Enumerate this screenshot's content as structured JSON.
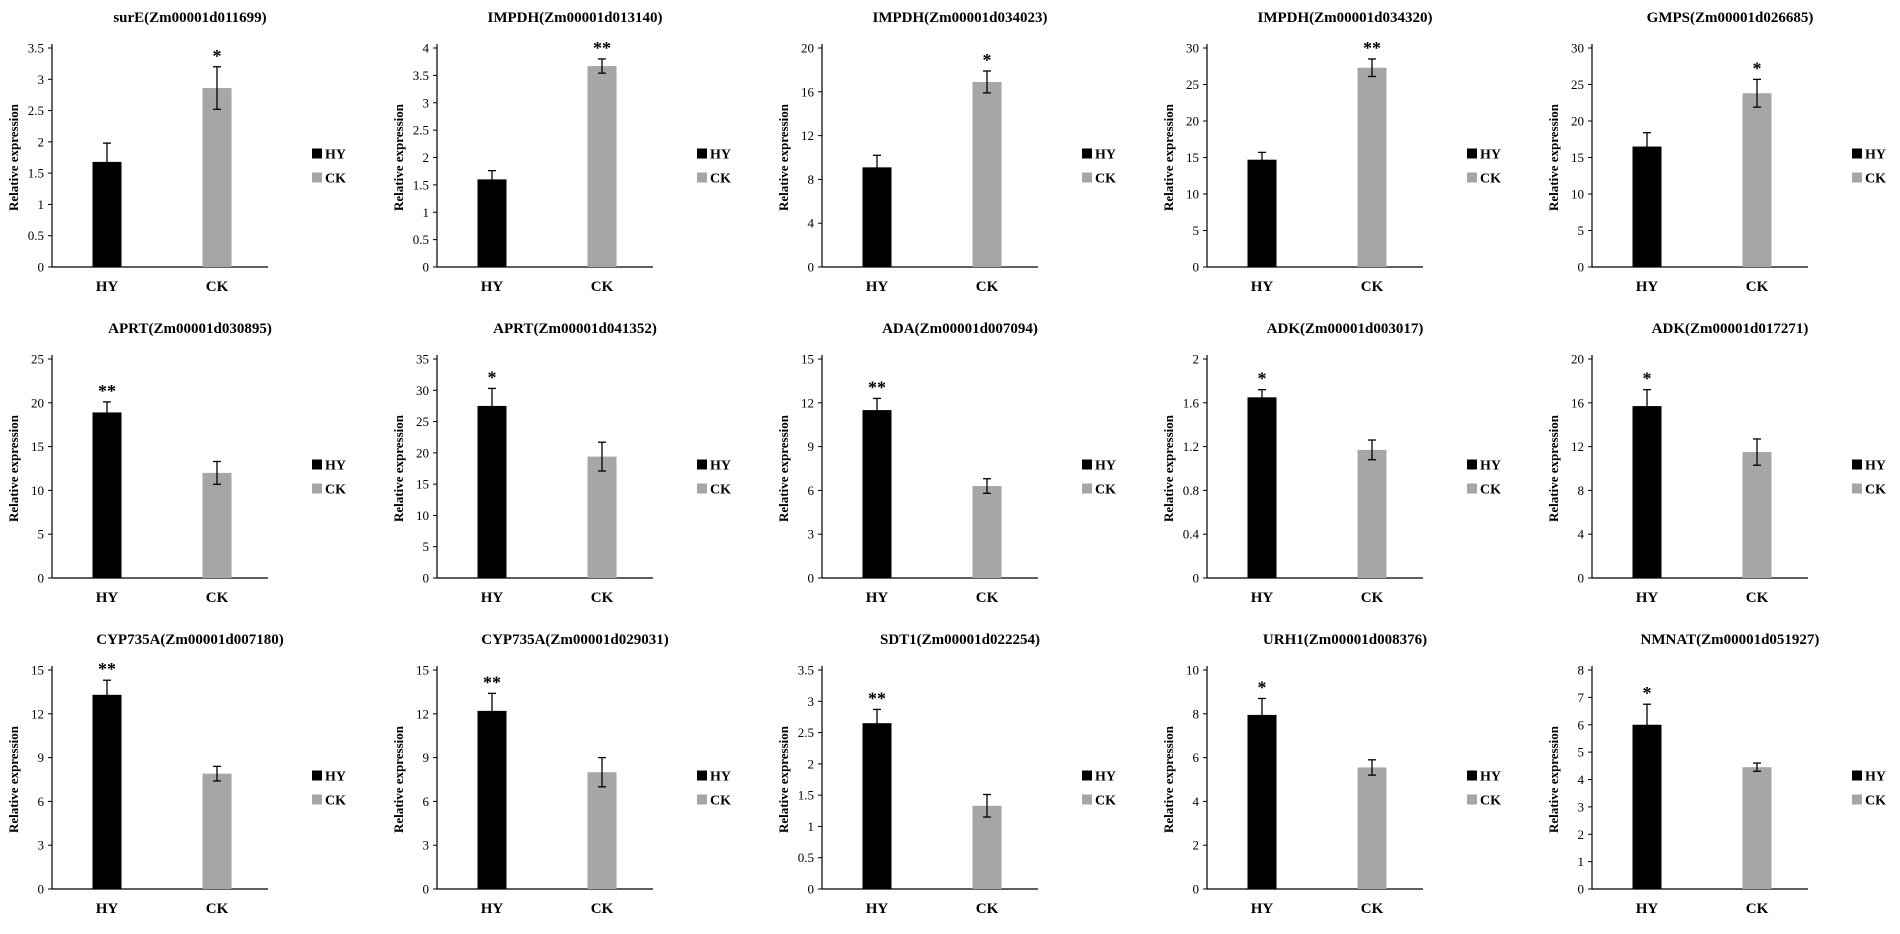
{
  "colors": {
    "HY": "#000000",
    "CK": "#a6a6a6",
    "axis": "#000000"
  },
  "chart_data": [
    {
      "type": "bar",
      "title": "surE(Zm00001d011699)",
      "ylabel": "Relative expression",
      "categories": [
        "HY",
        "CK"
      ],
      "values": [
        1.68,
        2.86
      ],
      "errors": [
        0.3,
        0.34
      ],
      "significance": [
        "",
        "*"
      ],
      "ylim": [
        0,
        3.5
      ],
      "ticks": [
        "0",
        "0.5",
        "1",
        "1.5",
        "2",
        "2.5",
        "3",
        "3.5"
      ],
      "legend": [
        "HY",
        "CK"
      ]
    },
    {
      "type": "bar",
      "title": "IMPDH(Zm00001d013140)",
      "ylabel": "Relative expression",
      "categories": [
        "HY",
        "CK"
      ],
      "values": [
        1.6,
        3.67
      ],
      "errors": [
        0.16,
        0.13
      ],
      "significance": [
        "",
        "**"
      ],
      "ylim": [
        0,
        4
      ],
      "ticks": [
        "0",
        "0.5",
        "1",
        "1.5",
        "2",
        "2.5",
        "3",
        "3.5",
        "4"
      ],
      "legend": [
        "HY",
        "CK"
      ]
    },
    {
      "type": "bar",
      "title": "IMPDH(Zm00001d034023)",
      "ylabel": "Relative expression",
      "categories": [
        "HY",
        "CK"
      ],
      "values": [
        9.1,
        16.9
      ],
      "errors": [
        1.1,
        1.0
      ],
      "significance": [
        "",
        "*"
      ],
      "ylim": [
        0,
        20
      ],
      "ticks": [
        "0",
        "4",
        "8",
        "12",
        "16",
        "20"
      ],
      "legend": [
        "HY",
        "CK"
      ]
    },
    {
      "type": "bar",
      "title": "IMPDH(Zm00001d034320)",
      "ylabel": "Relative expression",
      "categories": [
        "HY",
        "CK"
      ],
      "values": [
        14.7,
        27.3
      ],
      "errors": [
        1.0,
        1.2
      ],
      "significance": [
        "",
        "**"
      ],
      "ylim": [
        0,
        30
      ],
      "ticks": [
        "0",
        "5",
        "10",
        "15",
        "20",
        "25",
        "30"
      ],
      "legend": [
        "HY",
        "CK"
      ]
    },
    {
      "type": "bar",
      "title": "GMPS(Zm00001d026685)",
      "ylabel": "Relative expression",
      "categories": [
        "HY",
        "CK"
      ],
      "values": [
        16.5,
        23.8
      ],
      "errors": [
        1.9,
        1.9
      ],
      "significance": [
        "",
        "*"
      ],
      "ylim": [
        0,
        30
      ],
      "ticks": [
        "0",
        "5",
        "10",
        "15",
        "20",
        "25",
        "30"
      ],
      "legend": [
        "HY",
        "CK"
      ]
    },
    {
      "type": "bar",
      "title": "APRT(Zm00001d030895)",
      "ylabel": "Relative expression",
      "categories": [
        "HY",
        "CK"
      ],
      "values": [
        18.9,
        12.0
      ],
      "errors": [
        1.2,
        1.3
      ],
      "significance": [
        "**",
        ""
      ],
      "ylim": [
        0,
        25
      ],
      "ticks": [
        "0",
        "5",
        "10",
        "15",
        "20",
        "25"
      ],
      "legend": [
        "HY",
        "CK"
      ]
    },
    {
      "type": "bar",
      "title": "APRT(Zm00001d041352)",
      "ylabel": "Relative expression",
      "categories": [
        "HY",
        "CK"
      ],
      "values": [
        27.5,
        19.4
      ],
      "errors": [
        2.8,
        2.3
      ],
      "significance": [
        "*",
        ""
      ],
      "ylim": [
        0,
        35
      ],
      "ticks": [
        "0",
        "5",
        "10",
        "15",
        "20",
        "25",
        "30",
        "35"
      ],
      "legend": [
        "HY",
        "CK"
      ]
    },
    {
      "type": "bar",
      "title": "ADA(Zm00001d007094)",
      "ylabel": "Relative expression",
      "categories": [
        "HY",
        "CK"
      ],
      "values": [
        11.5,
        6.3
      ],
      "errors": [
        0.8,
        0.5
      ],
      "significance": [
        "**",
        ""
      ],
      "ylim": [
        0,
        15
      ],
      "ticks": [
        "0",
        "3",
        "6",
        "9",
        "12",
        "15"
      ],
      "legend": [
        "HY",
        "CK"
      ]
    },
    {
      "type": "bar",
      "title": "ADK(Zm00001d003017)",
      "ylabel": "Relative expression",
      "categories": [
        "HY",
        "CK"
      ],
      "values": [
        1.65,
        1.17
      ],
      "errors": [
        0.07,
        0.09
      ],
      "significance": [
        "*",
        ""
      ],
      "ylim": [
        0,
        2
      ],
      "ticks": [
        "0",
        "0.4",
        "0.8",
        "1.2",
        "1.6",
        "2"
      ],
      "legend": [
        "HY",
        "CK"
      ]
    },
    {
      "type": "bar",
      "title": "ADK(Zm00001d017271)",
      "ylabel": "Relative expression",
      "categories": [
        "HY",
        "CK"
      ],
      "values": [
        15.7,
        11.5
      ],
      "errors": [
        1.5,
        1.2
      ],
      "significance": [
        "*",
        ""
      ],
      "ylim": [
        0,
        20
      ],
      "ticks": [
        "0",
        "4",
        "8",
        "12",
        "16",
        "20"
      ],
      "legend": [
        "HY",
        "CK"
      ]
    },
    {
      "type": "bar",
      "title": "CYP735A(Zm00001d007180)",
      "ylabel": "Relative expression",
      "categories": [
        "HY",
        "CK"
      ],
      "values": [
        13.3,
        7.9
      ],
      "errors": [
        1.0,
        0.5
      ],
      "significance": [
        "**",
        ""
      ],
      "ylim": [
        0,
        15
      ],
      "ticks": [
        "0",
        "3",
        "6",
        "9",
        "12",
        "15"
      ],
      "legend": [
        "HY",
        "CK"
      ]
    },
    {
      "type": "bar",
      "title": "CYP735A(Zm00001d029031)",
      "ylabel": "Relative expression",
      "categories": [
        "HY",
        "CK"
      ],
      "values": [
        12.2,
        8.0
      ],
      "errors": [
        1.2,
        1.0
      ],
      "significance": [
        "**",
        ""
      ],
      "ylim": [
        0,
        15
      ],
      "ticks": [
        "0",
        "3",
        "6",
        "9",
        "12",
        "15"
      ],
      "legend": [
        "HY",
        "CK"
      ]
    },
    {
      "type": "bar",
      "title": "SDT1(Zm00001d022254)",
      "ylabel": "Relative expression",
      "categories": [
        "HY",
        "CK"
      ],
      "values": [
        2.65,
        1.33
      ],
      "errors": [
        0.22,
        0.18
      ],
      "significance": [
        "**",
        ""
      ],
      "ylim": [
        0,
        3.5
      ],
      "ticks": [
        "0",
        "0.5",
        "1",
        "1.5",
        "2",
        "2.5",
        "3",
        "3.5"
      ],
      "legend": [
        "HY",
        "CK"
      ]
    },
    {
      "type": "bar",
      "title": "URH1(Zm00001d008376)",
      "ylabel": "Relative expression",
      "categories": [
        "HY",
        "CK"
      ],
      "values": [
        7.95,
        5.55
      ],
      "errors": [
        0.75,
        0.35
      ],
      "significance": [
        "*",
        ""
      ],
      "ylim": [
        0,
        10
      ],
      "ticks": [
        "0",
        "2",
        "4",
        "6",
        "8",
        "10"
      ],
      "legend": [
        "HY",
        "CK"
      ]
    },
    {
      "type": "bar",
      "title": "NMNAT(Zm00001d051927)",
      "ylabel": "Relative expression",
      "categories": [
        "HY",
        "CK"
      ],
      "values": [
        6.0,
        4.45
      ],
      "errors": [
        0.75,
        0.15
      ],
      "significance": [
        "*",
        ""
      ],
      "ylim": [
        0,
        8
      ],
      "ticks": [
        "0",
        "1",
        "2",
        "3",
        "4",
        "5",
        "6",
        "7",
        "8"
      ],
      "legend": [
        "HY",
        "CK"
      ]
    }
  ]
}
